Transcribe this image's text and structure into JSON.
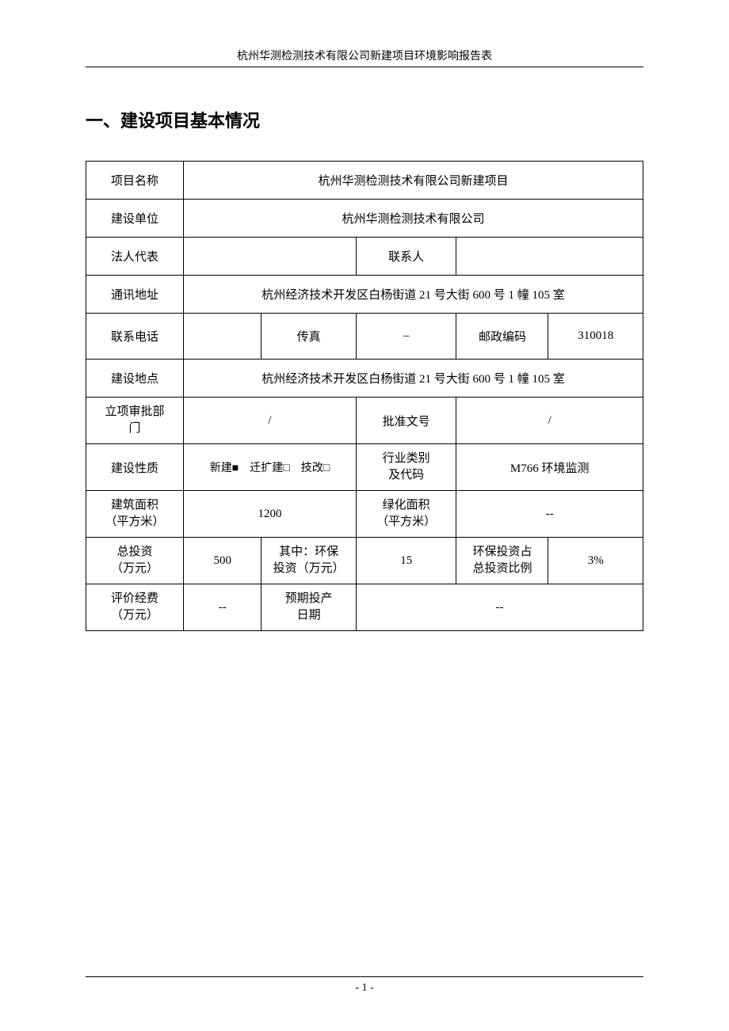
{
  "header": {
    "title": "杭州华测检测技术有限公司新建项目环境影响报告表"
  },
  "section": {
    "title": "一、建设项目基本情况"
  },
  "labels": {
    "project_name": "项目名称",
    "construction_unit": "建设单位",
    "legal_rep": "法人代表",
    "contact_person": "联系人",
    "mailing_address": "通讯地址",
    "phone": "联系电话",
    "fax": "传真",
    "postal_code": "邮政编码",
    "construction_location": "建设地点",
    "approval_dept": "立项审批部门",
    "approval_no": "批准文号",
    "construction_nature": "建设性质",
    "industry_category": "行业类别及代码",
    "building_area": "建筑面积（平方米）",
    "green_area": "绿化面积（平方米）",
    "total_investment": "总投资（万元）",
    "env_investment": "其中：环保投资（万元）",
    "env_ratio": "环保投资占总投资比例",
    "eval_cost": "评价经费（万元）",
    "expected_date": "预期投产日期"
  },
  "values": {
    "project_name": "杭州华测检测技术有限公司新建项目",
    "construction_unit": "杭州华测检测技术有限公司",
    "legal_rep": "",
    "contact_person": "",
    "mailing_address": "杭州经济技术开发区白杨街道 21 号大街 600 号 1 幢 105 室",
    "phone": "",
    "fax": "",
    "fax_val": "–",
    "postal_code": "310018",
    "construction_location": "杭州经济技术开发区白杨街道 21 号大街 600 号 1 幢 105 室",
    "approval_dept": "/",
    "approval_no": "/",
    "construction_nature": "新建■　迁扩建□　技改□",
    "industry_category": "M766  环境监测",
    "building_area": "1200",
    "green_area": "--",
    "total_investment": "500",
    "env_investment": "15",
    "env_ratio": "3%",
    "eval_cost": "--",
    "expected_date": "--"
  },
  "footer": {
    "pagenum": "- 1 -"
  },
  "style": {
    "background": "#ffffff",
    "border_color": "#000000",
    "font_main": "SimSun",
    "font_heading": "SimHei",
    "col_widths": {
      "c1": "17%",
      "c2": "14%",
      "c3": "17%",
      "c4": "18%",
      "c5": "17%",
      "c6": "17%"
    }
  }
}
